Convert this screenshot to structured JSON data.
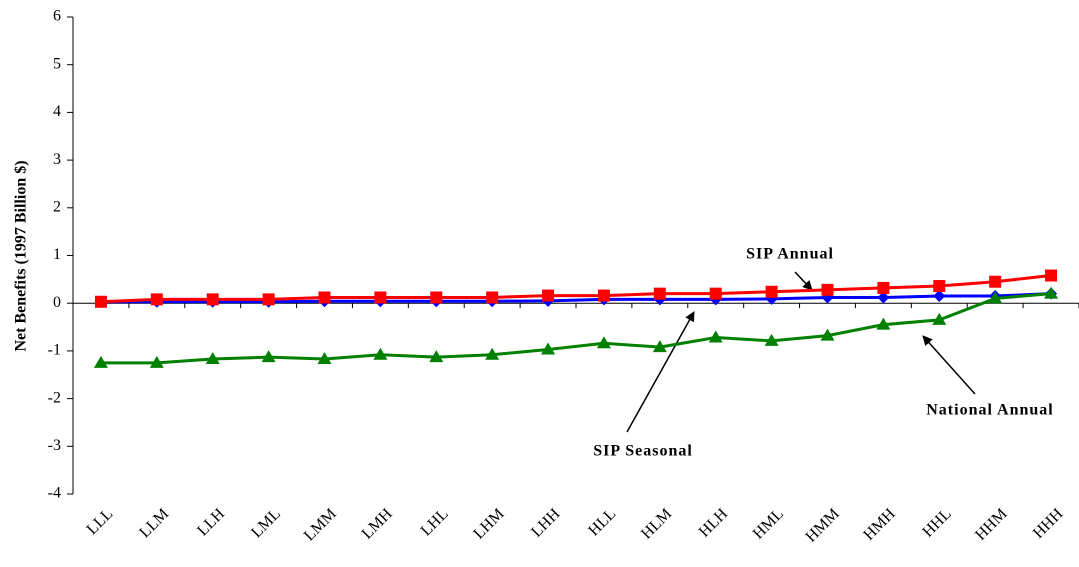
{
  "chart_data": {
    "type": "line",
    "y_label": "Net Benefits (1997 Billion $)",
    "categories": [
      "LLL",
      "LLM",
      "LLH",
      "LML",
      "LMM",
      "LMH",
      "LHL",
      "LHM",
      "LHH",
      "HLL",
      "HLM",
      "HLH",
      "HML",
      "HMM",
      "HMH",
      "HHL",
      "HHM",
      "HHH"
    ],
    "series": [
      {
        "name": "SIP Seasonal",
        "color": "#0000ff",
        "marker": "diamond",
        "values": [
          0.03,
          0.03,
          0.03,
          0.03,
          0.04,
          0.04,
          0.04,
          0.04,
          0.05,
          0.08,
          0.08,
          0.08,
          0.09,
          0.12,
          0.12,
          0.15,
          0.15,
          0.2
        ]
      },
      {
        "name": "SIP Annual",
        "color": "#ff0000",
        "marker": "square",
        "values": [
          0.03,
          0.08,
          0.08,
          0.08,
          0.12,
          0.12,
          0.12,
          0.12,
          0.16,
          0.16,
          0.2,
          0.2,
          0.24,
          0.28,
          0.32,
          0.36,
          0.45,
          0.58
        ]
      },
      {
        "name": "National Annual",
        "color": "#008000",
        "marker": "triangle",
        "values": [
          -1.25,
          -1.25,
          -1.17,
          -1.13,
          -1.17,
          -1.08,
          -1.13,
          -1.08,
          -0.97,
          -0.84,
          -0.92,
          -0.72,
          -0.79,
          -0.68,
          -0.45,
          -0.35,
          0.1,
          0.2
        ]
      }
    ],
    "ylim": [
      -4,
      6
    ],
    "yticks": [
      -4,
      -3,
      -2,
      -1,
      0,
      1,
      2,
      3,
      4,
      5,
      6
    ]
  }
}
